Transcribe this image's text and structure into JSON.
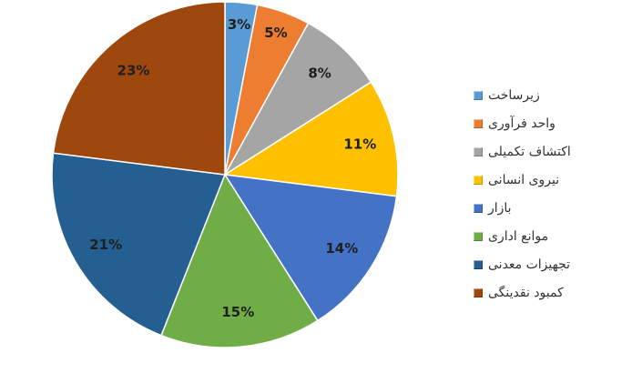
{
  "chart_data": {
    "type": "pie",
    "start": "12 o'clock, clockwise",
    "slices": [
      {
        "label": "زیرساخت",
        "value": 3,
        "color": "#5B9BD5"
      },
      {
        "label": "واحد فرآوری",
        "value": 5,
        "color": "#ED7D31"
      },
      {
        "label": "اکتشاف تکمیلی",
        "value": 8,
        "color": "#A5A5A5"
      },
      {
        "label": "نیروی انسانی",
        "value": 11,
        "color": "#FFC000"
      },
      {
        "label": "بازار",
        "value": 14,
        "color": "#4472C4"
      },
      {
        "label": "موانع اداری",
        "value": 15,
        "color": "#70AD47"
      },
      {
        "label": "تجهیزات معدنی",
        "value": 21,
        "color": "#255E91"
      },
      {
        "label": "کمبود نقدینگی",
        "value": 23,
        "color": "#9E480E"
      }
    ],
    "data_label_suffix": "%",
    "legend_position": "right"
  }
}
